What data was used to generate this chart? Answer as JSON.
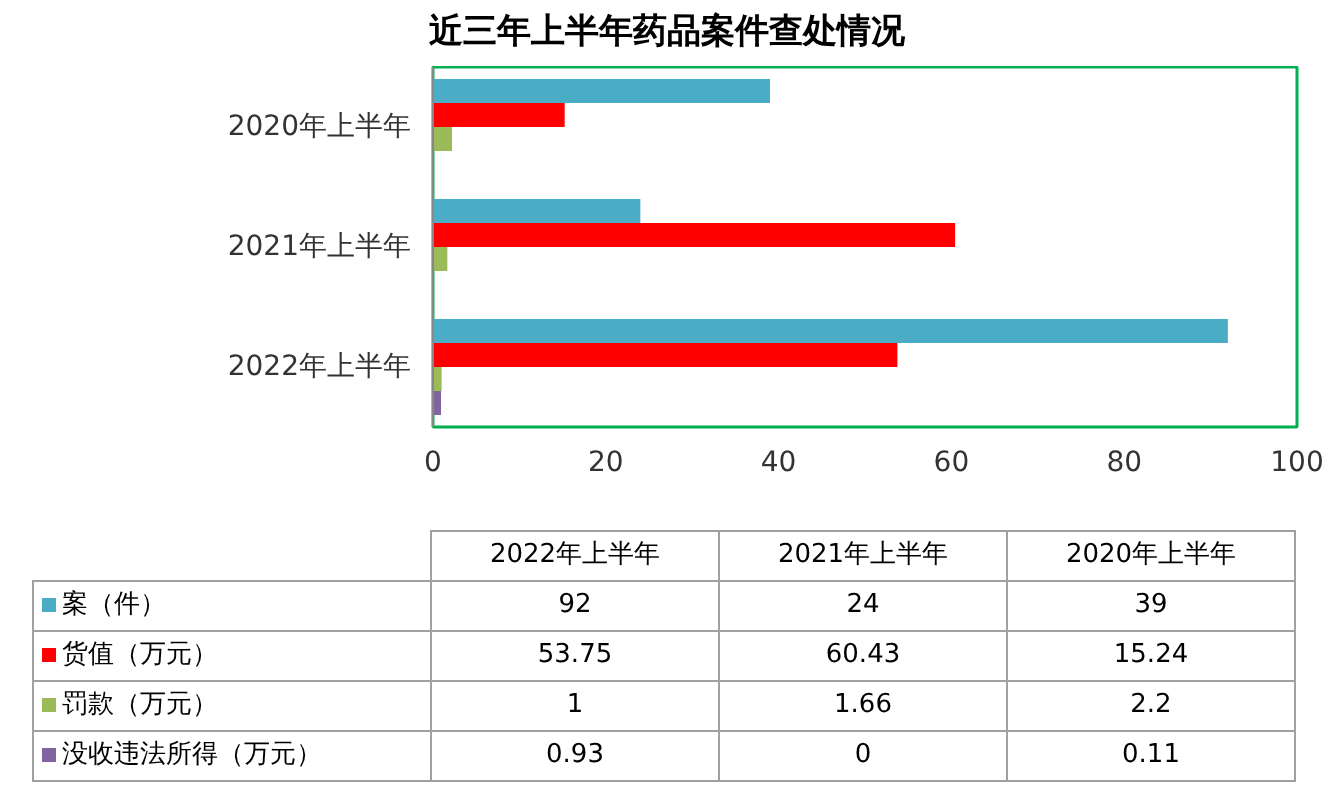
{
  "chart_data": [
    {
      "type": "bar",
      "orientation": "horizontal",
      "title": "近三年上半年药品案件查处情况",
      "categories": [
        "2020年上半年",
        "2021年上半年",
        "2022年上半年"
      ],
      "series": [
        {
          "color": "#4bacc6",
          "values": [
            39,
            24,
            92
          ]
        },
        {
          "color": "#ff0000",
          "values": [
            15.24,
            60.43,
            53.75
          ]
        },
        {
          "color": "#9bbb59",
          "values": [
            2.2,
            1.66,
            1
          ]
        },
        {
          "color": "#8064a2",
          "values": [
            0.11,
            0,
            0.93
          ]
        }
      ],
      "xlim": [
        0,
        100
      ],
      "xticks": [
        0,
        20,
        40,
        60,
        80,
        100
      ],
      "grid": false
    },
    {
      "type": "other",
      "categories": [
        "2022年上半年",
        "2021年上半年",
        "2020年上半年"
      ],
      "series": [
        {
          "name": "案（件）",
          "color": "#4bacc6",
          "values": [
            92,
            24,
            39
          ]
        },
        {
          "name": "货值（万元）",
          "color": "#ff0000",
          "values": [
            53.75,
            60.43,
            15.24
          ]
        },
        {
          "name": "罚款（万元）",
          "color": "#9bbb59",
          "values": [
            1,
            1.66,
            2.2
          ]
        },
        {
          "name": "没收违法所得（万元）",
          "color": "#8064a2",
          "values": [
            0.93,
            0,
            0.11
          ]
        }
      ],
      "legend": "left",
      "data_labels": true
    }
  ]
}
